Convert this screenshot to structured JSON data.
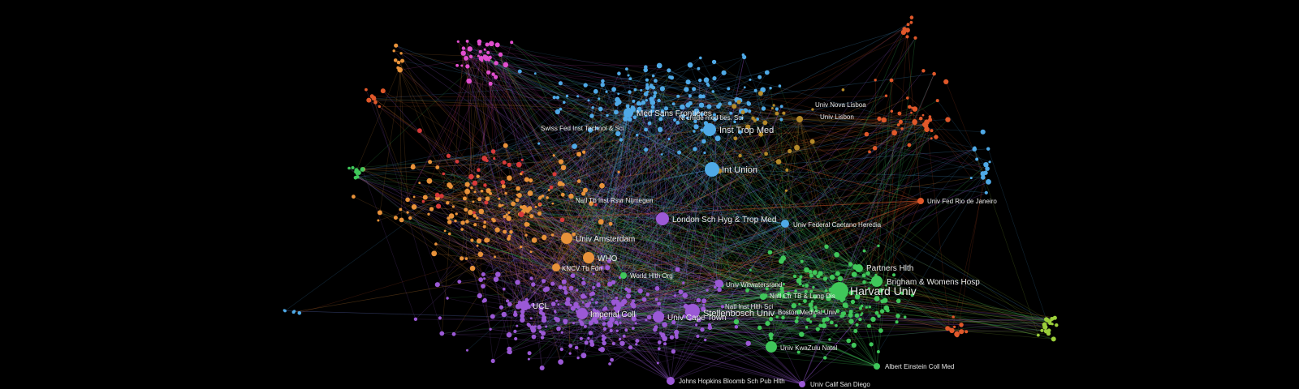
{
  "network": {
    "palette": {
      "background": "#000000",
      "orange": "#e8923a",
      "blue": "#4fa9e6",
      "purple": "#9b59d6",
      "green": "#3fc75a",
      "pink": "#e14fcf",
      "red_orange": "#e0582a",
      "lime": "#9bcf3a",
      "gold": "#b58a2a",
      "red": "#d83a3a"
    },
    "labels": {
      "med_sans_frontieres": "Med Sans Frontieres",
      "hlth_dev_bd_sci": "Ni childe med bes. Sci",
      "inst_trop_med": "Inst Trop Med",
      "univ_nova_lisboa": "Univ Nova Lisboa",
      "univ_lisbon": "Univ Lisbon",
      "swiss_inst_tech": "Swiss Fed Inst Technol & Sci",
      "int_union": "Int Union",
      "natl_tb_inst": "Natl Tb Inst Rsvr Nijmegen",
      "univ_fed_rio": "Univ Fed Rio de Janeiro",
      "london_sch": "London Sch Hyg & Trop Med",
      "univ_fed_caet": "Univ Federal Caetano Heredia",
      "univ_amsterdam": "Univ Amsterdam",
      "who": "WHO",
      "kncv": "KNCV Tb Fdn",
      "partners_hlth": "Partners Hlth",
      "world_hlth_org": "World Hlth Org",
      "brigham": "Brigham & Womens Hosp",
      "univ_witwatersrand": "Univ Witwatersrand",
      "harvard": "Harvard Univ",
      "natl_ctr_tb": "Natl Ctr TB & Lung Dis",
      "natl_inst_hlth": "Natl Inst Hlth Sci",
      "boston_med": "Boston Medical Univ",
      "ucl": "UCL",
      "imperial": "Imperial Coll",
      "univ_cape_town": "Univ Cape Town",
      "stellenbosch": "Stellenbosch Univ",
      "kwazulu": "Univ KwaZulu Natal",
      "einstein": "Albert Einstein Coll Med",
      "johns_hopkins": "Johns Hopkins Bloomb Sch Pub Hlth",
      "ucsd": "Univ Calif San Diego"
    }
  }
}
